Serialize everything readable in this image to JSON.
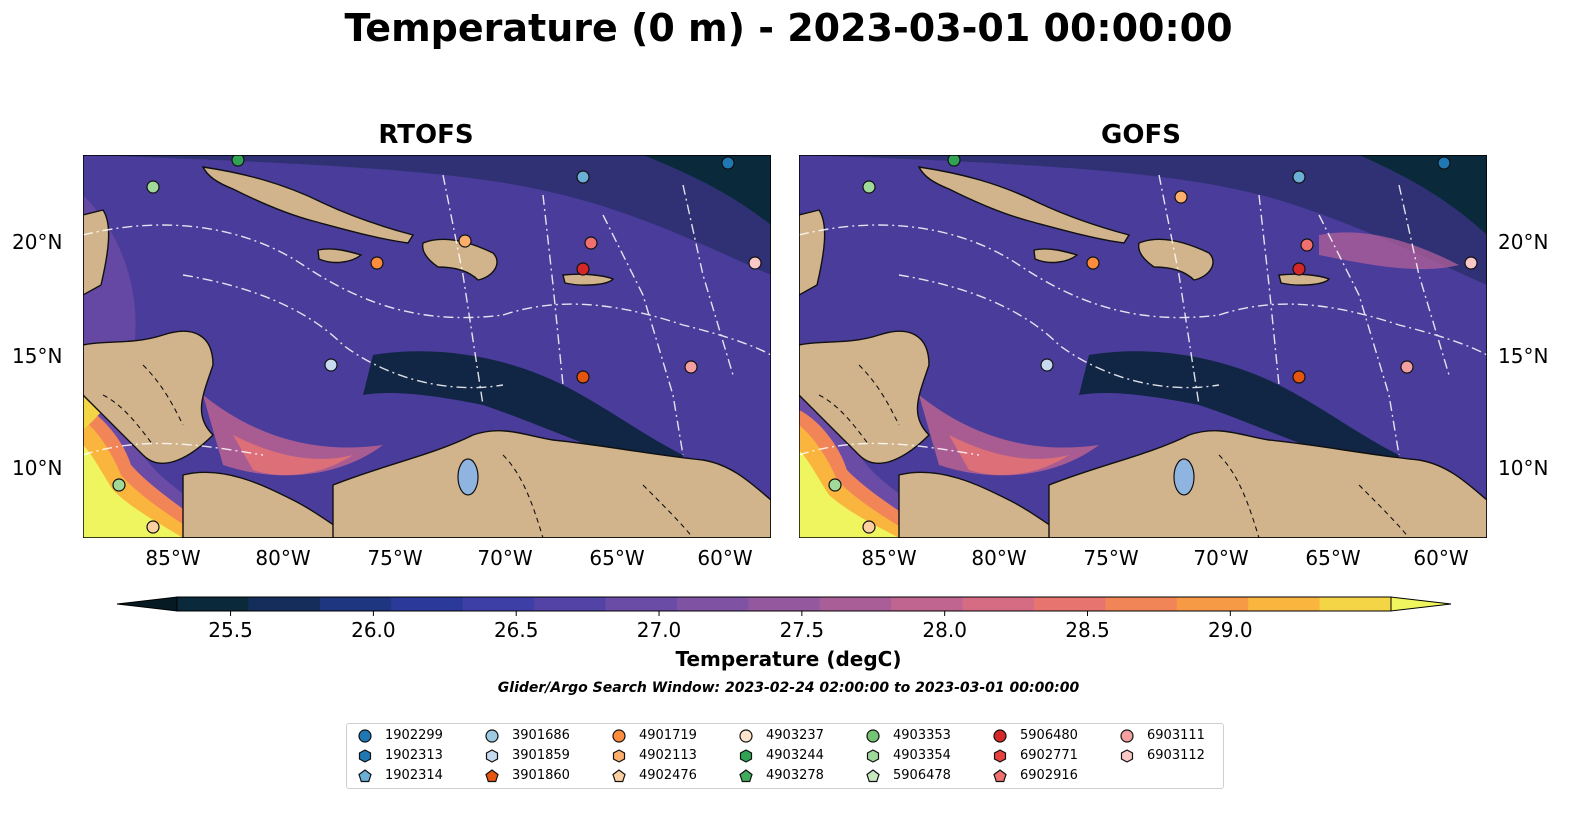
{
  "title": "Temperature (0 m) - 2023-03-01 00:00:00",
  "panels": [
    {
      "title": "RTOFS"
    },
    {
      "title": "GOFS"
    }
  ],
  "lon_labels": [
    "85°W",
    "80°W",
    "75°W",
    "70°W",
    "65°W",
    "60°W"
  ],
  "lat_labels": [
    "20°N",
    "15°N",
    "10°N"
  ],
  "colorbar": {
    "label": "Temperature (degC)",
    "ticks": [
      "25.5",
      "26.0",
      "26.5",
      "27.0",
      "27.5",
      "28.0",
      "28.5",
      "29.0"
    ],
    "colors": [
      "#0a2a3c",
      "#142d5a",
      "#1e3580",
      "#2b3a9a",
      "#3e3fa6",
      "#5443a6",
      "#6a4ba6",
      "#7f52a4",
      "#94589f",
      "#aa5e98",
      "#c06490",
      "#d66b84",
      "#e87470",
      "#f28558",
      "#f79a45",
      "#f9b53e",
      "#f3d546"
    ],
    "extend_low": "#061a24",
    "extend_high": "#eef55e"
  },
  "window_text": "Glider/Argo Search Window: 2023-02-24 02:00:00 to 2023-03-01 00:00:00",
  "legend": {
    "columns": [
      [
        {
          "id": "1902299",
          "marker": "circle",
          "color": "#1f77b4"
        },
        {
          "id": "1902313",
          "marker": "hexagon",
          "color": "#1f77b4"
        },
        {
          "id": "1902314",
          "marker": "pentagon",
          "color": "#6baed6"
        }
      ],
      [
        {
          "id": "3901686",
          "marker": "circle",
          "color": "#9ecae1"
        },
        {
          "id": "3901859",
          "marker": "hexagon",
          "color": "#c6dbef"
        },
        {
          "id": "3901860",
          "marker": "pentagon",
          "color": "#e6550d"
        }
      ],
      [
        {
          "id": "4901719",
          "marker": "circle",
          "color": "#fd8d3c"
        },
        {
          "id": "4902113",
          "marker": "hexagon",
          "color": "#fdae6b"
        },
        {
          "id": "4902476",
          "marker": "pentagon",
          "color": "#fdd0a2"
        }
      ],
      [
        {
          "id": "4903237",
          "marker": "circle",
          "color": "#fde4cc"
        },
        {
          "id": "4903244",
          "marker": "hexagon",
          "color": "#31a354"
        },
        {
          "id": "4903278",
          "marker": "pentagon",
          "color": "#41ab5d"
        }
      ],
      [
        {
          "id": "4903353",
          "marker": "circle",
          "color": "#74c476"
        },
        {
          "id": "4903354",
          "marker": "hexagon",
          "color": "#a1d99b"
        },
        {
          "id": "5906478",
          "marker": "pentagon",
          "color": "#c7e9c0"
        }
      ],
      [
        {
          "id": "5906480",
          "marker": "circle",
          "color": "#d62728"
        },
        {
          "id": "6902771",
          "marker": "hexagon",
          "color": "#e6413f"
        },
        {
          "id": "6902916",
          "marker": "pentagon",
          "color": "#f07070"
        }
      ],
      [
        {
          "id": "6903111",
          "marker": "circle",
          "color": "#f4a0a0"
        },
        {
          "id": "6903112",
          "marker": "hexagon",
          "color": "#fbc8c8"
        }
      ]
    ]
  },
  "colors": {
    "land": "#d2b48c",
    "ocean_base": "#4a3c9a",
    "cold": "#0a2a3c",
    "warm": "#c06490",
    "hot": "#eef55e"
  }
}
